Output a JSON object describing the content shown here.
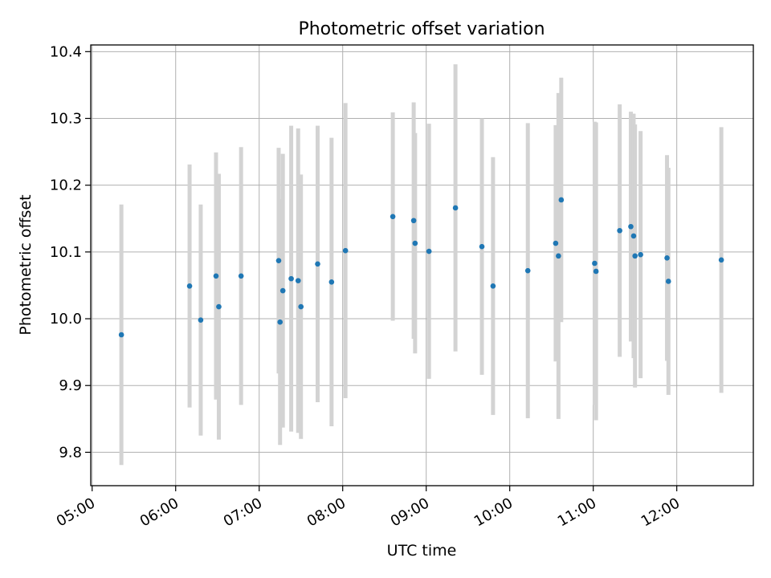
{
  "chart_data": {
    "type": "scatter",
    "title": "Photometric offset variation",
    "xlabel": "UTC time",
    "ylabel": "Photometric offset",
    "x_tick_labels": [
      "05:00",
      "06:00",
      "07:00",
      "08:00",
      "09:00",
      "10:00",
      "11:00",
      "12:00"
    ],
    "y_tick_labels": [
      "9.8",
      "9.9",
      "10.0",
      "10.1",
      "10.2",
      "10.3",
      "10.4"
    ],
    "xlim": [
      "04:59",
      "12:55"
    ],
    "ylim": [
      9.75,
      10.41
    ],
    "grid": true,
    "errorbars": true,
    "point_color": "#1f77b4",
    "errorbar_color": "#d3d3d3",
    "series": [
      {
        "x": [
          "05:21",
          "06:10",
          "06:18",
          "06:29",
          "06:31",
          "06:47",
          "07:14",
          "07:15",
          "07:17",
          "07:23",
          "07:28",
          "07:30",
          "07:42",
          "07:52",
          "08:02",
          "08:36",
          "08:51",
          "08:52",
          "09:02",
          "09:21",
          "09:40",
          "09:48",
          "10:13",
          "10:33",
          "10:35",
          "10:37",
          "11:01",
          "11:02",
          "11:19",
          "11:27",
          "11:29",
          "11:30",
          "11:34",
          "11:53",
          "11:54",
          "12:32"
        ],
        "y": [
          9.976,
          10.049,
          9.998,
          10.064,
          10.018,
          10.064,
          10.087,
          9.995,
          10.042,
          10.06,
          10.057,
          10.018,
          10.082,
          10.055,
          10.102,
          10.153,
          10.147,
          10.113,
          10.101,
          10.166,
          10.108,
          10.049,
          10.072,
          10.113,
          10.094,
          10.178,
          10.083,
          10.071,
          10.132,
          10.138,
          10.124,
          10.094,
          10.096,
          10.091,
          10.056,
          10.088
        ],
        "err": [
          0.195,
          0.182,
          0.173,
          0.185,
          0.199,
          0.193,
          0.169,
          0.184,
          0.205,
          0.229,
          0.228,
          0.198,
          0.207,
          0.216,
          0.221,
          0.156,
          0.177,
          0.165,
          0.191,
          0.215,
          0.192,
          0.193,
          0.221,
          0.177,
          0.244,
          0.183,
          0.212,
          0.223,
          0.189,
          0.172,
          0.183,
          0.197,
          0.185,
          0.154,
          0.17,
          0.199
        ]
      }
    ]
  }
}
